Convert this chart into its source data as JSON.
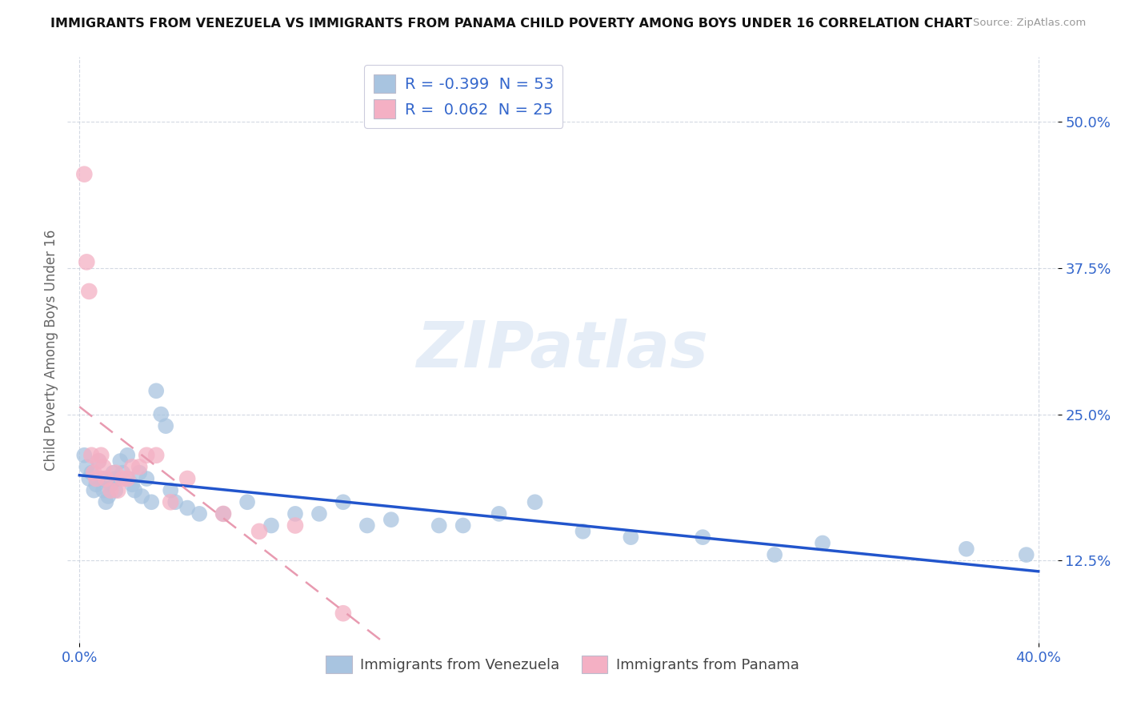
{
  "title": "IMMIGRANTS FROM VENEZUELA VS IMMIGRANTS FROM PANAMA CHILD POVERTY AMONG BOYS UNDER 16 CORRELATION CHART",
  "source": "Source: ZipAtlas.com",
  "ylabel": "Child Poverty Among Boys Under 16",
  "yticks": [
    "50.0%",
    "37.5%",
    "25.0%",
    "12.5%"
  ],
  "ytick_vals": [
    0.5,
    0.375,
    0.25,
    0.125
  ],
  "legend1_label": "Immigrants from Venezuela",
  "legend2_label": "Immigrants from Panama",
  "R1": -0.399,
  "N1": 53,
  "R2": 0.062,
  "N2": 25,
  "color1": "#a8c4e0",
  "color2": "#f4b0c4",
  "line1_color": "#2255cc",
  "line2_color": "#e89ab0",
  "watermark": "ZIPatlas",
  "venezuela_x": [
    0.002,
    0.003,
    0.004,
    0.005,
    0.006,
    0.007,
    0.008,
    0.009,
    0.01,
    0.01,
    0.011,
    0.012,
    0.013,
    0.014,
    0.015,
    0.015,
    0.016,
    0.017,
    0.018,
    0.02,
    0.02,
    0.022,
    0.023,
    0.025,
    0.026,
    0.028,
    0.03,
    0.032,
    0.034,
    0.036,
    0.038,
    0.04,
    0.045,
    0.05,
    0.06,
    0.07,
    0.08,
    0.09,
    0.1,
    0.11,
    0.12,
    0.13,
    0.15,
    0.16,
    0.175,
    0.19,
    0.21,
    0.23,
    0.26,
    0.29,
    0.31,
    0.37,
    0.395
  ],
  "venezuela_y": [
    0.215,
    0.205,
    0.195,
    0.2,
    0.185,
    0.19,
    0.21,
    0.195,
    0.195,
    0.185,
    0.175,
    0.18,
    0.19,
    0.2,
    0.195,
    0.185,
    0.195,
    0.21,
    0.2,
    0.215,
    0.195,
    0.19,
    0.185,
    0.2,
    0.18,
    0.195,
    0.175,
    0.27,
    0.25,
    0.24,
    0.185,
    0.175,
    0.17,
    0.165,
    0.165,
    0.175,
    0.155,
    0.165,
    0.165,
    0.175,
    0.155,
    0.16,
    0.155,
    0.155,
    0.165,
    0.175,
    0.15,
    0.145,
    0.145,
    0.13,
    0.14,
    0.135,
    0.13
  ],
  "panama_x": [
    0.002,
    0.003,
    0.004,
    0.005,
    0.006,
    0.007,
    0.008,
    0.009,
    0.01,
    0.011,
    0.013,
    0.015,
    0.016,
    0.018,
    0.02,
    0.022,
    0.025,
    0.028,
    0.032,
    0.038,
    0.045,
    0.06,
    0.075,
    0.09,
    0.11
  ],
  "panama_y": [
    0.455,
    0.38,
    0.355,
    0.215,
    0.2,
    0.195,
    0.21,
    0.215,
    0.205,
    0.195,
    0.185,
    0.2,
    0.185,
    0.195,
    0.195,
    0.205,
    0.205,
    0.215,
    0.215,
    0.175,
    0.195,
    0.165,
    0.15,
    0.155,
    0.08
  ]
}
